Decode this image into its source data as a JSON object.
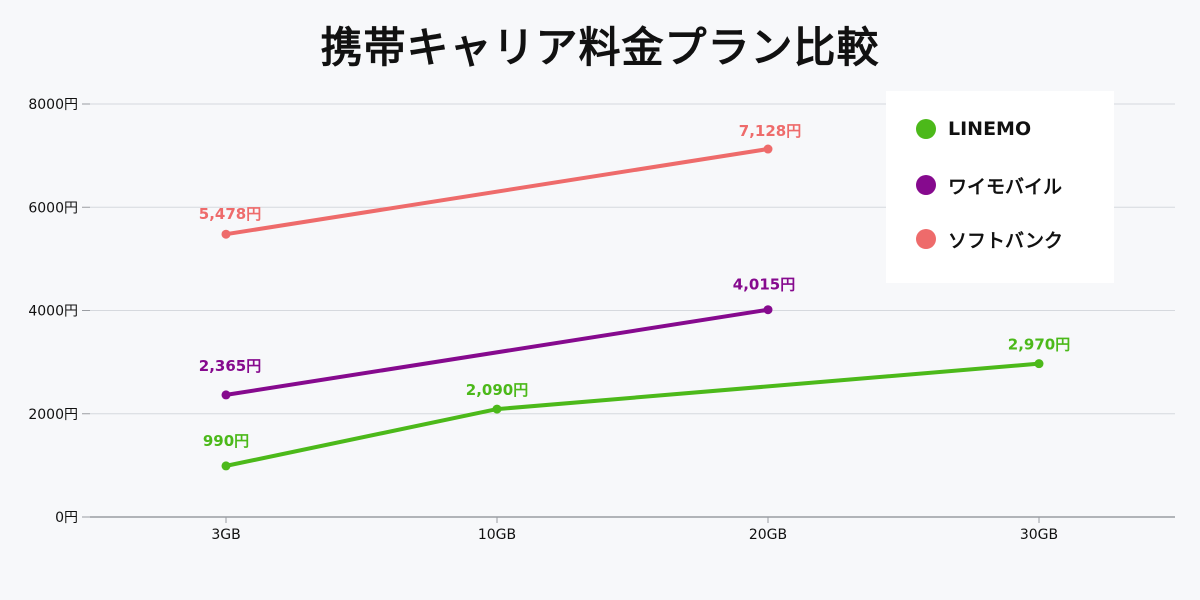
{
  "chart_data": {
    "type": "line",
    "title": "携帯キャリア料金プラン比較",
    "categories": [
      "3GB",
      "10GB",
      "20GB",
      "30GB"
    ],
    "y_tick_labels": [
      "0円",
      "2000円",
      "4000円",
      "6000円",
      "8000円"
    ],
    "y_ticks": [
      0,
      2000,
      4000,
      6000,
      8000
    ],
    "ylim": [
      0,
      8000
    ],
    "grid": true,
    "legend_position": "top-right",
    "series": [
      {
        "name": "LINEMO",
        "color": "#4cb91a",
        "values": [
          990,
          2090,
          null,
          2970
        ],
        "data_labels": [
          "990円",
          "2,090円",
          null,
          "2,970円"
        ]
      },
      {
        "name": "ワイモバイル",
        "color": "#860a8e",
        "values": [
          2365,
          null,
          4015,
          null
        ],
        "data_labels": [
          "2,365円",
          null,
          "4,015円",
          null
        ]
      },
      {
        "name": "ソフトバンク",
        "color": "#ee6b6b",
        "values": [
          5478,
          null,
          7128,
          null
        ],
        "data_labels": [
          "5,478円",
          null,
          "7,128円",
          null
        ]
      }
    ]
  }
}
